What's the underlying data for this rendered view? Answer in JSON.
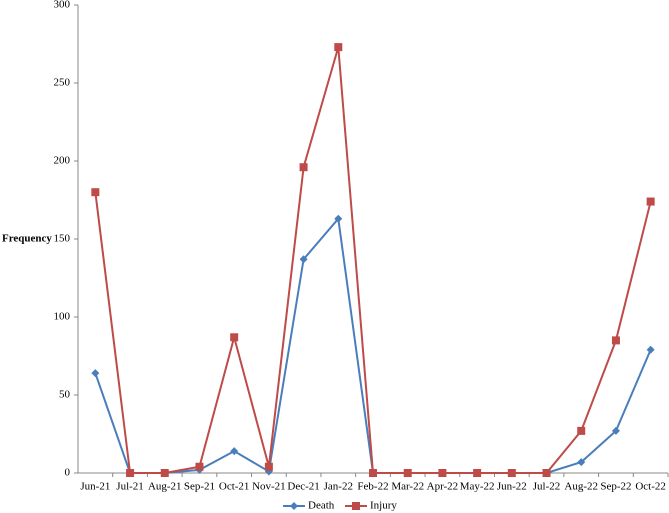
{
  "chart_data": {
    "type": "line",
    "y_label": "Frequency",
    "categories": [
      "Jun-21",
      "Jul-21",
      "Aug-21",
      "Sep-21",
      "Oct-21",
      "Nov-21",
      "Dec-21",
      "Jan-22",
      "Feb-22",
      "Mar-22",
      "Apr-22",
      "May-22",
      "Jun-22",
      "Jul-22",
      "Aug-22",
      "Sep-22",
      "Oct-22"
    ],
    "series": [
      {
        "name": "Death",
        "color": "#4a7ebb",
        "marker": "diamond",
        "values": [
          64,
          0,
          0,
          2,
          14,
          1,
          137,
          163,
          0,
          0,
          0,
          0,
          0,
          0,
          7,
          27,
          79
        ]
      },
      {
        "name": "Injury",
        "color": "#be4b48",
        "marker": "square",
        "values": [
          180,
          0,
          0,
          4,
          87,
          4,
          196,
          273,
          0,
          0,
          0,
          0,
          0,
          0,
          27,
          85,
          174
        ]
      }
    ],
    "ylim": [
      0,
      300
    ],
    "yticks": [
      0,
      50,
      100,
      150,
      200,
      250,
      300
    ],
    "legend": "bottom"
  }
}
